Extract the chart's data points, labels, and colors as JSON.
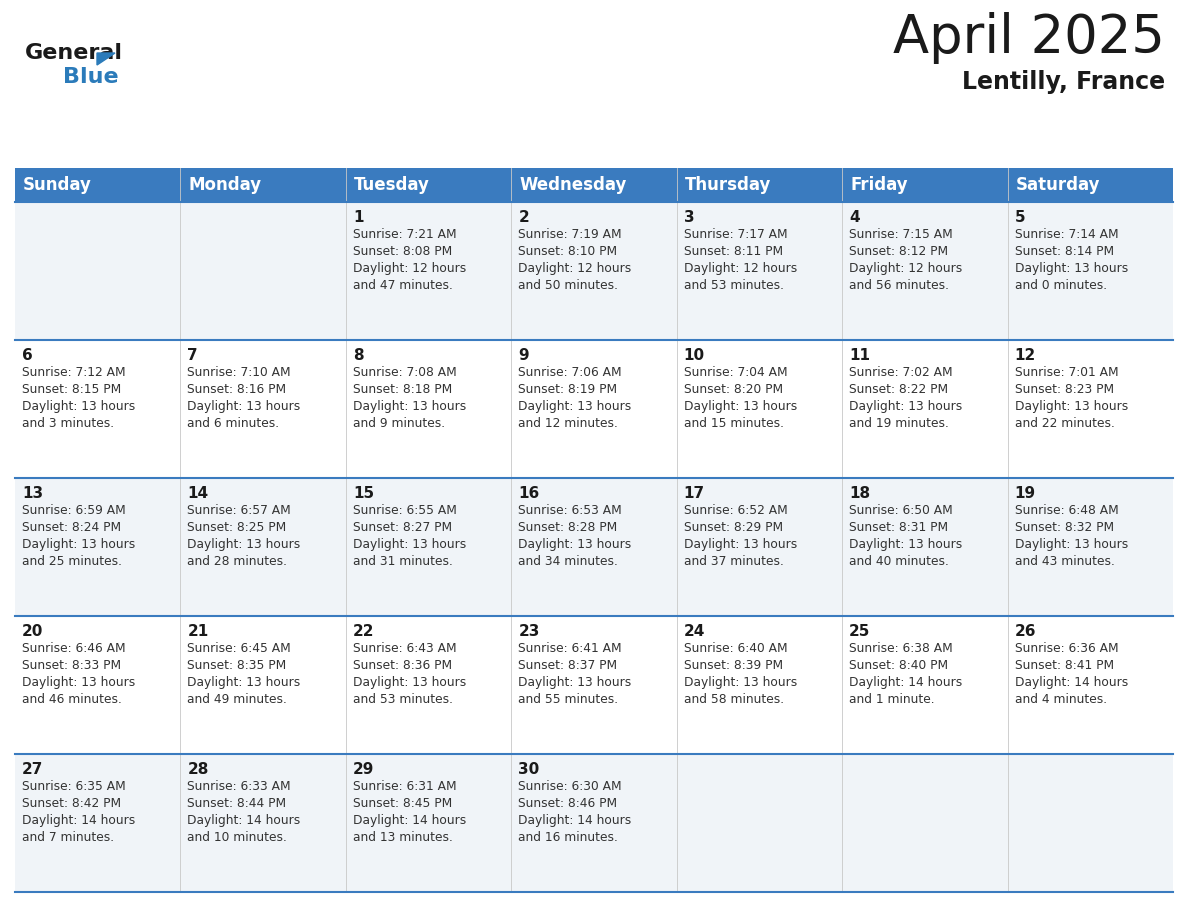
{
  "title": "April 2025",
  "subtitle": "Lentilly, France",
  "header_bg": "#3a7bbf",
  "header_text": "#ffffff",
  "row_bg_even": "#f0f4f8",
  "row_bg_odd": "#ffffff",
  "separator_color": "#3a7bbf",
  "day_headers": [
    "Sunday",
    "Monday",
    "Tuesday",
    "Wednesday",
    "Thursday",
    "Friday",
    "Saturday"
  ],
  "calendar_data": [
    [
      "",
      "",
      "1\nSunrise: 7:21 AM\nSunset: 8:08 PM\nDaylight: 12 hours\nand 47 minutes.",
      "2\nSunrise: 7:19 AM\nSunset: 8:10 PM\nDaylight: 12 hours\nand 50 minutes.",
      "3\nSunrise: 7:17 AM\nSunset: 8:11 PM\nDaylight: 12 hours\nand 53 minutes.",
      "4\nSunrise: 7:15 AM\nSunset: 8:12 PM\nDaylight: 12 hours\nand 56 minutes.",
      "5\nSunrise: 7:14 AM\nSunset: 8:14 PM\nDaylight: 13 hours\nand 0 minutes."
    ],
    [
      "6\nSunrise: 7:12 AM\nSunset: 8:15 PM\nDaylight: 13 hours\nand 3 minutes.",
      "7\nSunrise: 7:10 AM\nSunset: 8:16 PM\nDaylight: 13 hours\nand 6 minutes.",
      "8\nSunrise: 7:08 AM\nSunset: 8:18 PM\nDaylight: 13 hours\nand 9 minutes.",
      "9\nSunrise: 7:06 AM\nSunset: 8:19 PM\nDaylight: 13 hours\nand 12 minutes.",
      "10\nSunrise: 7:04 AM\nSunset: 8:20 PM\nDaylight: 13 hours\nand 15 minutes.",
      "11\nSunrise: 7:02 AM\nSunset: 8:22 PM\nDaylight: 13 hours\nand 19 minutes.",
      "12\nSunrise: 7:01 AM\nSunset: 8:23 PM\nDaylight: 13 hours\nand 22 minutes."
    ],
    [
      "13\nSunrise: 6:59 AM\nSunset: 8:24 PM\nDaylight: 13 hours\nand 25 minutes.",
      "14\nSunrise: 6:57 AM\nSunset: 8:25 PM\nDaylight: 13 hours\nand 28 minutes.",
      "15\nSunrise: 6:55 AM\nSunset: 8:27 PM\nDaylight: 13 hours\nand 31 minutes.",
      "16\nSunrise: 6:53 AM\nSunset: 8:28 PM\nDaylight: 13 hours\nand 34 minutes.",
      "17\nSunrise: 6:52 AM\nSunset: 8:29 PM\nDaylight: 13 hours\nand 37 minutes.",
      "18\nSunrise: 6:50 AM\nSunset: 8:31 PM\nDaylight: 13 hours\nand 40 minutes.",
      "19\nSunrise: 6:48 AM\nSunset: 8:32 PM\nDaylight: 13 hours\nand 43 minutes."
    ],
    [
      "20\nSunrise: 6:46 AM\nSunset: 8:33 PM\nDaylight: 13 hours\nand 46 minutes.",
      "21\nSunrise: 6:45 AM\nSunset: 8:35 PM\nDaylight: 13 hours\nand 49 minutes.",
      "22\nSunrise: 6:43 AM\nSunset: 8:36 PM\nDaylight: 13 hours\nand 53 minutes.",
      "23\nSunrise: 6:41 AM\nSunset: 8:37 PM\nDaylight: 13 hours\nand 55 minutes.",
      "24\nSunrise: 6:40 AM\nSunset: 8:39 PM\nDaylight: 13 hours\nand 58 minutes.",
      "25\nSunrise: 6:38 AM\nSunset: 8:40 PM\nDaylight: 14 hours\nand 1 minute.",
      "26\nSunrise: 6:36 AM\nSunset: 8:41 PM\nDaylight: 14 hours\nand 4 minutes."
    ],
    [
      "27\nSunrise: 6:35 AM\nSunset: 8:42 PM\nDaylight: 14 hours\nand 7 minutes.",
      "28\nSunrise: 6:33 AM\nSunset: 8:44 PM\nDaylight: 14 hours\nand 10 minutes.",
      "29\nSunrise: 6:31 AM\nSunset: 8:45 PM\nDaylight: 14 hours\nand 13 minutes.",
      "30\nSunrise: 6:30 AM\nSunset: 8:46 PM\nDaylight: 14 hours\nand 16 minutes.",
      "",
      "",
      ""
    ]
  ],
  "logo_color_general": "#1a1a1a",
  "logo_color_blue": "#2b7bba",
  "title_fontsize": 38,
  "subtitle_fontsize": 17,
  "header_fontsize": 12,
  "cell_day_fontsize": 11,
  "cell_info_fontsize": 8.8
}
